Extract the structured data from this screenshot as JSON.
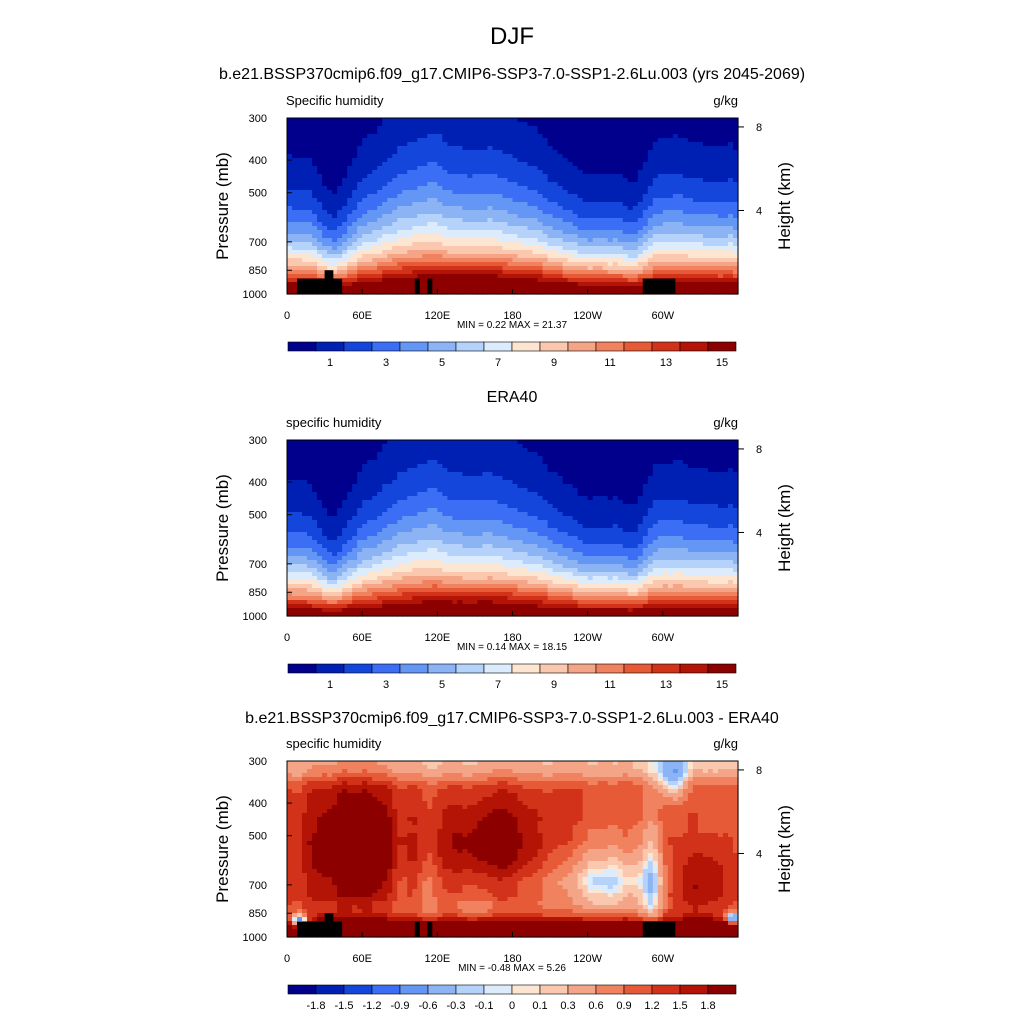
{
  "figure": {
    "title": "DJF",
    "subtitle": "b.e21.BSSP370cmip6.f09_g17.CMIP6-SSP3-7.0-SSP1-2.6Lu.003 (yrs 2045-2069)"
  },
  "colors": {
    "abs_scale": [
      "#00008c",
      "#0020b4",
      "#1446dc",
      "#3c6ef5",
      "#6496f5",
      "#8cb4f5",
      "#b4d2fa",
      "#dcecfc",
      "#fce6d2",
      "#fac8af",
      "#f5a587",
      "#f0825f",
      "#e65a37",
      "#d23219",
      "#b41405",
      "#8c0000"
    ],
    "diff_scale": [
      "#00008c",
      "#0020b4",
      "#1446dc",
      "#3c6ef5",
      "#6496f5",
      "#8cb4f5",
      "#b4d2fa",
      "#dcecfc",
      "#fce6d2",
      "#fac8af",
      "#f5a587",
      "#f0825f",
      "#e65a37",
      "#d23219",
      "#b41405",
      "#8c0000"
    ],
    "terrain": "#000000"
  },
  "chart_data": [
    {
      "type": "heatmap",
      "panel_title": "",
      "left_label": "Specific humidity",
      "right_label": "g/kg",
      "xlabel": "",
      "ylabel": "Pressure (mb)",
      "y2label": "Height (km)",
      "x_ticks": [
        "0",
        "60E",
        "120E",
        "180",
        "120W",
        "60W"
      ],
      "x_tick_values": [
        0,
        60,
        120,
        180,
        240,
        300
      ],
      "xlim": [
        0,
        360
      ],
      "y_ticks": [
        "300",
        "400",
        "500",
        "700",
        "850",
        "1000"
      ],
      "y_tick_values": [
        300,
        400,
        500,
        700,
        850,
        1000
      ],
      "ylim": [
        1000,
        300
      ],
      "y_scale": "log",
      "y2_ticks": [
        "8",
        "4"
      ],
      "y2_tick_values": [
        8,
        4
      ],
      "stats": "MIN =   0.22  MAX =  21.37",
      "field_kind": "absolute",
      "colorbar_labels": [
        "1",
        "3",
        "5",
        "7",
        "9",
        "11",
        "13",
        "15"
      ],
      "colorbar_levels": [
        0.5,
        1,
        2,
        3,
        4,
        5,
        6,
        7,
        8,
        9,
        10,
        11,
        12,
        13,
        14,
        15,
        16
      ],
      "terrain_masked": true
    },
    {
      "type": "heatmap",
      "panel_title": "ERA40",
      "left_label": "specific humidity",
      "right_label": "g/kg",
      "xlabel": "",
      "ylabel": "Pressure (mb)",
      "y2label": "Height (km)",
      "x_ticks": [
        "0",
        "60E",
        "120E",
        "180",
        "120W",
        "60W"
      ],
      "x_tick_values": [
        0,
        60,
        120,
        180,
        240,
        300
      ],
      "xlim": [
        0,
        360
      ],
      "y_ticks": [
        "300",
        "400",
        "500",
        "700",
        "850",
        "1000"
      ],
      "y_tick_values": [
        300,
        400,
        500,
        700,
        850,
        1000
      ],
      "ylim": [
        1000,
        300
      ],
      "y_scale": "log",
      "y2_ticks": [
        "8",
        "4"
      ],
      "y2_tick_values": [
        8,
        4
      ],
      "stats": "MIN =   0.14  MAX =  18.15",
      "field_kind": "absolute",
      "colorbar_labels": [
        "1",
        "3",
        "5",
        "7",
        "9",
        "11",
        "13",
        "15"
      ],
      "colorbar_levels": [
        0.5,
        1,
        2,
        3,
        4,
        5,
        6,
        7,
        8,
        9,
        10,
        11,
        12,
        13,
        14,
        15,
        16
      ],
      "terrain_masked": false
    },
    {
      "type": "heatmap",
      "panel_title": "b.e21.BSSP370cmip6.f09_g17.CMIP6-SSP3-7.0-SSP1-2.6Lu.003 - ERA40",
      "left_label": "specific humidity",
      "right_label": "g/kg",
      "xlabel": "",
      "ylabel": "Pressure (mb)",
      "y2label": "Height (km)",
      "x_ticks": [
        "0",
        "60E",
        "120E",
        "180",
        "120W",
        "60W"
      ],
      "x_tick_values": [
        0,
        60,
        120,
        180,
        240,
        300
      ],
      "xlim": [
        0,
        360
      ],
      "y_ticks": [
        "300",
        "400",
        "500",
        "700",
        "850",
        "1000"
      ],
      "y_tick_values": [
        300,
        400,
        500,
        700,
        850,
        1000
      ],
      "ylim": [
        1000,
        300
      ],
      "y_scale": "log",
      "y2_ticks": [
        "8",
        "4"
      ],
      "y2_tick_values": [
        8,
        4
      ],
      "stats": "MIN =  -0.48  MAX =   5.26",
      "field_kind": "difference",
      "colorbar_labels": [
        "-1.8",
        "-1.5",
        "-1.2",
        "-0.9",
        "-0.6",
        "-0.3",
        "-0.1",
        "0",
        "0.1",
        "0.3",
        "0.6",
        "0.9",
        "1.2",
        "1.5",
        "1.8"
      ],
      "colorbar_levels": [
        -2.1,
        -1.8,
        -1.5,
        -1.2,
        -0.9,
        -0.6,
        -0.3,
        -0.1,
        0,
        0.1,
        0.3,
        0.6,
        0.9,
        1.2,
        1.5,
        1.8,
        2.1
      ],
      "terrain_masked": true
    }
  ]
}
